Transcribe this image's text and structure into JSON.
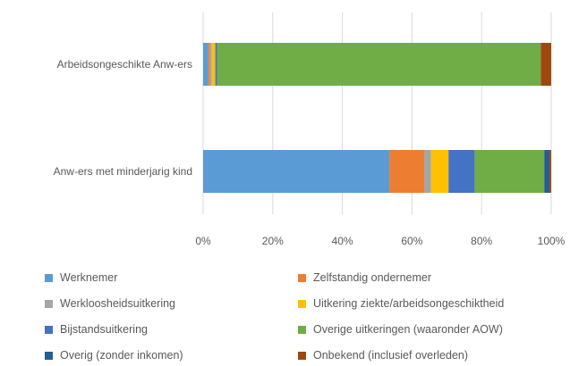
{
  "chart_data": {
    "type": "bar",
    "orientation": "horizontal",
    "stacked": true,
    "normalized": true,
    "categories": [
      "Arbeidsongeschikte Anw-ers",
      "Anw-ers met minderjarig kind"
    ],
    "x_ticks": [
      "0%",
      "20%",
      "40%",
      "60%",
      "80%",
      "100%"
    ],
    "xlim": [
      0,
      100
    ],
    "grid": "vertical",
    "legend_position": "bottom",
    "series": [
      {
        "name": "Werknemer",
        "color": "#5B9BD5",
        "values": [
          1.5,
          53.5
        ]
      },
      {
        "name": "Zelfstandig ondernemer",
        "color": "#ED7D31",
        "values": [
          0.5,
          10
        ]
      },
      {
        "name": "Werkloosheidsuitkering",
        "color": "#A5A5A5",
        "values": [
          0.5,
          2
        ]
      },
      {
        "name": "Uitkering ziekte/arbeidsongeschiktheid",
        "color": "#FFC000",
        "values": [
          1,
          5
        ]
      },
      {
        "name": "Bijstandsuitkering",
        "color": "#4472C4",
        "values": [
          0.5,
          7.5
        ]
      },
      {
        "name": "Overige uitkeringen (waaronder AOW)",
        "color": "#70AD47",
        "values": [
          93,
          20
        ]
      },
      {
        "name": "Overig (zonder inkomen)",
        "color": "#255E91",
        "values": [
          0,
          1.5
        ]
      },
      {
        "name": "Onbekend (inclusief overleden)",
        "color": "#9E480E",
        "values": [
          3,
          0.5
        ]
      }
    ]
  }
}
